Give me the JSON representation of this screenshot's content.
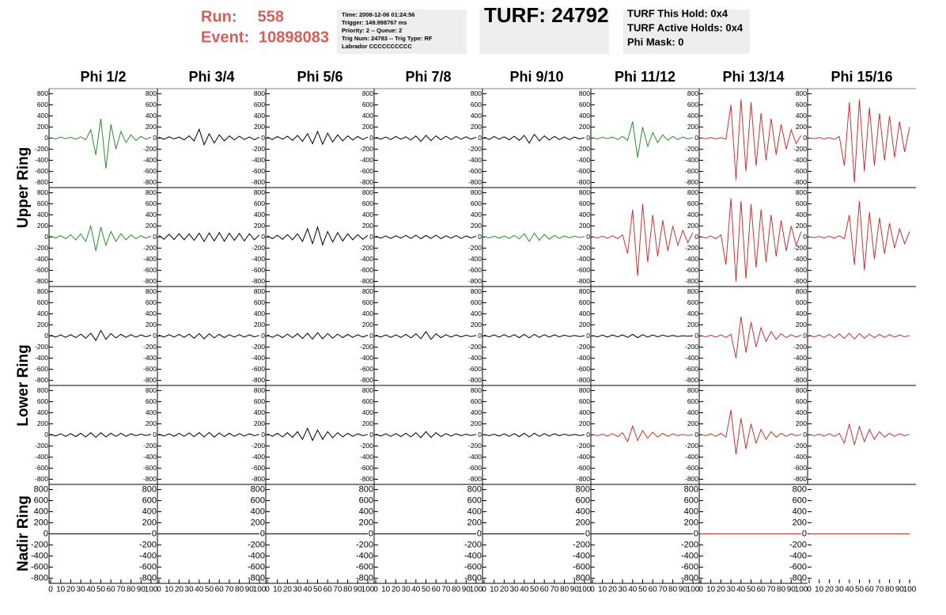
{
  "header": {
    "run_label": "Run:",
    "run": "558",
    "event_label": "Event:",
    "event": "10898083",
    "info_lines": [
      "Time: 2008-12-06 01:24:56",
      "Trigger: 149.998767 ms",
      "Priority: 2 -- Queue: 2",
      "Trig Num: 24783 -- Trig Type: RF",
      "Labrador CCCCCCCCCC"
    ],
    "turf": "TURF: 24792",
    "turf_lines": [
      "TURF This Hold: 0x4",
      "TURF Active Holds: 0x4",
      "Phi Mask: 0"
    ]
  },
  "chart_data": {
    "type": "waveform-grid",
    "columns": [
      "Phi 1/2",
      "Phi 3/4",
      "Phi 5/6",
      "Phi 7/8",
      "Phi 9/10",
      "Phi 11/12",
      "Phi 13/14",
      "Phi 15/16"
    ],
    "ring_labels": [
      "Upper Ring",
      "Lower Ring",
      "Nadir Ring"
    ],
    "xlim": [
      0,
      100
    ],
    "xticks": [
      0,
      10,
      20,
      30,
      40,
      50,
      60,
      70,
      80,
      90,
      100
    ],
    "ylim": [
      -850,
      850
    ],
    "yticks": [
      -800,
      -600,
      -400,
      -200,
      0,
      200,
      400,
      600,
      800
    ],
    "x": [
      0,
      5,
      10,
      15,
      20,
      25,
      30,
      35,
      40,
      45,
      50,
      55,
      60,
      65,
      70,
      75,
      80,
      85,
      90,
      95,
      100
    ],
    "panels": [
      [
        {
          "color": "#2e8b2e",
          "values": [
            10,
            -15,
            20,
            -10,
            15,
            -20,
            25,
            -30,
            150,
            -300,
            350,
            -550,
            250,
            -200,
            120,
            -80,
            60,
            -40,
            30,
            -20,
            15
          ]
        },
        {
          "color": "#000000",
          "values": [
            15,
            -20,
            25,
            -15,
            20,
            -30,
            40,
            -50,
            160,
            -120,
            80,
            -90,
            60,
            -50,
            40,
            -30,
            35,
            -25,
            20,
            -30,
            15
          ]
        },
        {
          "color": "#000000",
          "values": [
            20,
            -25,
            30,
            -20,
            35,
            -40,
            50,
            -60,
            80,
            -100,
            120,
            -110,
            90,
            -70,
            60,
            -50,
            40,
            -35,
            30,
            -25,
            20
          ]
        },
        {
          "color": "#000000",
          "values": [
            15,
            -20,
            20,
            -25,
            30,
            -20,
            25,
            -35,
            40,
            -60,
            50,
            -45,
            40,
            -30,
            35,
            -25,
            30,
            -20,
            25,
            -20,
            15
          ]
        },
        {
          "color": "#000000",
          "values": [
            20,
            -25,
            30,
            -20,
            25,
            -30,
            35,
            -40,
            50,
            -90,
            70,
            -50,
            40,
            -35,
            30,
            -25,
            20,
            -25,
            20,
            -15,
            10
          ]
        },
        {
          "color": "#2e8b2e",
          "values": [
            10,
            -15,
            15,
            -10,
            20,
            -25,
            30,
            -40,
            300,
            -350,
            200,
            -150,
            100,
            -80,
            60,
            -40,
            30,
            -25,
            20,
            -15,
            10
          ]
        },
        {
          "color": "#c83232",
          "values": [
            5,
            -10,
            10,
            -15,
            10,
            -20,
            600,
            -750,
            700,
            -600,
            650,
            -500,
            450,
            -400,
            350,
            -300,
            250,
            -200,
            150,
            -100,
            50
          ]
        },
        {
          "color": "#c83232",
          "values": [
            5,
            -10,
            10,
            -15,
            10,
            -20,
            30,
            -500,
            650,
            -800,
            700,
            -600,
            550,
            -500,
            450,
            -400,
            400,
            -350,
            300,
            -250,
            200
          ]
        }
      ],
      [
        {
          "color": "#2e8b2e",
          "values": [
            15,
            -20,
            25,
            -30,
            40,
            -50,
            60,
            -80,
            200,
            -250,
            180,
            -150,
            100,
            -80,
            60,
            -50,
            40,
            -30,
            25,
            -20,
            15
          ]
        },
        {
          "color": "#000000",
          "values": [
            30,
            -40,
            50,
            -45,
            60,
            -50,
            55,
            -60,
            70,
            -80,
            75,
            -70,
            80,
            -75,
            70,
            -60,
            65,
            -70,
            60,
            -50,
            40
          ]
        },
        {
          "color": "#000000",
          "values": [
            25,
            -30,
            35,
            -40,
            45,
            -50,
            60,
            -80,
            150,
            -120,
            180,
            -140,
            100,
            -90,
            80,
            -70,
            60,
            -50,
            45,
            -40,
            30
          ]
        },
        {
          "color": "#000000",
          "values": [
            15,
            -20,
            20,
            -25,
            25,
            -20,
            30,
            -25,
            35,
            -30,
            30,
            -25,
            35,
            -30,
            25,
            -20,
            30,
            -25,
            20,
            -15,
            15
          ]
        },
        {
          "color": "#2e8b2e",
          "values": [
            10,
            -15,
            15,
            -20,
            20,
            -25,
            30,
            -35,
            60,
            -80,
            70,
            -60,
            50,
            -40,
            30,
            -25,
            20,
            -15,
            15,
            -10,
            10
          ]
        },
        {
          "color": "#c83232",
          "values": [
            10,
            -15,
            15,
            -20,
            20,
            -30,
            40,
            -300,
            500,
            -700,
            600,
            -450,
            400,
            -350,
            300,
            -250,
            200,
            -150,
            120,
            -100,
            80
          ]
        },
        {
          "color": "#c83232",
          "values": [
            10,
            -20,
            20,
            -30,
            40,
            -500,
            700,
            -800,
            650,
            -750,
            600,
            -550,
            500,
            -450,
            400,
            -350,
            300,
            -250,
            200,
            -150,
            100
          ]
        },
        {
          "color": "#c83232",
          "values": [
            5,
            -10,
            10,
            -15,
            15,
            -20,
            25,
            -30,
            400,
            -500,
            650,
            -600,
            450,
            -400,
            350,
            -300,
            250,
            -200,
            150,
            -120,
            100
          ]
        }
      ],
      [
        {
          "color": "#000000",
          "values": [
            15,
            -20,
            20,
            -25,
            25,
            -30,
            35,
            -40,
            50,
            -80,
            100,
            -60,
            45,
            -35,
            30,
            -25,
            25,
            -20,
            20,
            -15,
            15
          ]
        },
        {
          "color": "#000000",
          "values": [
            15,
            -20,
            25,
            -20,
            30,
            -25,
            35,
            -40,
            45,
            -50,
            40,
            -35,
            30,
            -30,
            25,
            -20,
            25,
            -20,
            20,
            -15,
            10
          ]
        },
        {
          "color": "#000000",
          "values": [
            20,
            -25,
            25,
            -30,
            35,
            -30,
            40,
            -45,
            50,
            -55,
            60,
            -50,
            45,
            -40,
            35,
            -30,
            30,
            -25,
            25,
            -20,
            15
          ]
        },
        {
          "color": "#000000",
          "values": [
            15,
            -20,
            20,
            -25,
            20,
            -25,
            30,
            -35,
            40,
            -50,
            80,
            -60,
            40,
            -30,
            25,
            -20,
            20,
            -15,
            15,
            -10,
            10
          ]
        },
        {
          "color": "#000000",
          "values": [
            15,
            -15,
            20,
            -20,
            25,
            -20,
            25,
            -30,
            30,
            -35,
            30,
            -25,
            25,
            -20,
            20,
            -15,
            15,
            -10,
            10,
            -10,
            5
          ]
        },
        {
          "color": "#000000",
          "values": [
            10,
            -15,
            15,
            -20,
            20,
            -15,
            20,
            -25,
            30,
            -30,
            25,
            -20,
            20,
            -15,
            15,
            -10,
            10,
            -10,
            5,
            -5,
            5
          ]
        },
        {
          "color": "#c83232",
          "values": [
            10,
            -15,
            15,
            -20,
            20,
            -25,
            30,
            -400,
            350,
            -300,
            250,
            -200,
            150,
            -100,
            80,
            -60,
            40,
            -30,
            25,
            -20,
            15
          ]
        },
        {
          "color": "#c83232",
          "values": [
            15,
            -20,
            20,
            -25,
            30,
            -35,
            40,
            -45,
            50,
            -55,
            45,
            -40,
            35,
            -30,
            30,
            -25,
            25,
            -20,
            20,
            -15,
            10
          ]
        }
      ],
      [
        {
          "color": "#000000",
          "values": [
            15,
            -20,
            20,
            -25,
            25,
            -30,
            30,
            -35,
            40,
            -45,
            40,
            -35,
            30,
            -25,
            30,
            -25,
            20,
            -15,
            15,
            -10,
            10
          ]
        },
        {
          "color": "#000000",
          "values": [
            15,
            -20,
            20,
            -25,
            30,
            -25,
            35,
            -30,
            40,
            -35,
            45,
            -40,
            35,
            -30,
            30,
            -25,
            25,
            -20,
            20,
            -15,
            10
          ]
        },
        {
          "color": "#000000",
          "values": [
            20,
            -25,
            30,
            -35,
            40,
            -45,
            60,
            -80,
            120,
            -100,
            90,
            -80,
            60,
            -50,
            40,
            -35,
            30,
            -25,
            20,
            -15,
            10
          ]
        },
        {
          "color": "#000000",
          "values": [
            15,
            -20,
            20,
            -25,
            25,
            -30,
            30,
            -35,
            40,
            -50,
            60,
            -45,
            40,
            -30,
            25,
            -20,
            20,
            -15,
            15,
            -10,
            10
          ]
        },
        {
          "color": "#000000",
          "values": [
            10,
            -15,
            15,
            -20,
            20,
            -25,
            25,
            -30,
            30,
            -35,
            30,
            -25,
            25,
            -20,
            20,
            -15,
            15,
            -10,
            10,
            -10,
            5
          ]
        },
        {
          "color": "#c83232",
          "values": [
            10,
            -15,
            15,
            -20,
            25,
            -30,
            40,
            -120,
            160,
            -100,
            80,
            -60,
            50,
            -40,
            30,
            -25,
            20,
            -15,
            10,
            -10,
            5
          ]
        },
        {
          "color": "#c83232",
          "values": [
            10,
            -15,
            20,
            -25,
            30,
            -40,
            450,
            -350,
            300,
            -250,
            200,
            -150,
            100,
            -80,
            60,
            -40,
            30,
            -25,
            20,
            -15,
            10
          ]
        },
        {
          "color": "#c83232",
          "values": [
            10,
            -15,
            15,
            -20,
            20,
            -25,
            30,
            -150,
            200,
            -180,
            150,
            -120,
            100,
            -80,
            60,
            -40,
            30,
            -25,
            20,
            -15,
            10
          ]
        }
      ],
      [
        {
          "color": "#000000",
          "values": [
            0,
            0,
            0,
            0,
            0,
            0,
            0,
            0,
            0,
            0,
            0,
            0,
            0,
            0,
            0,
            0,
            0,
            0,
            0,
            0,
            0
          ]
        },
        {
          "color": "#000000",
          "values": [
            0,
            0,
            0,
            0,
            0,
            0,
            0,
            0,
            0,
            0,
            0,
            0,
            0,
            0,
            0,
            0,
            0,
            0,
            0,
            0,
            0
          ]
        },
        {
          "color": "#000000",
          "values": [
            0,
            0,
            0,
            0,
            0,
            0,
            0,
            0,
            0,
            0,
            0,
            0,
            0,
            0,
            0,
            0,
            0,
            0,
            0,
            0,
            0
          ]
        },
        {
          "color": "#000000",
          "values": [
            0,
            0,
            0,
            0,
            0,
            0,
            0,
            0,
            0,
            0,
            0,
            0,
            0,
            0,
            0,
            0,
            0,
            0,
            0,
            0,
            0
          ]
        },
        {
          "color": "#000000",
          "values": [
            0,
            0,
            0,
            0,
            0,
            0,
            0,
            0,
            0,
            0,
            0,
            0,
            0,
            0,
            0,
            0,
            0,
            0,
            0,
            0,
            0
          ]
        },
        {
          "color": "#000000",
          "values": [
            0,
            0,
            0,
            0,
            0,
            0,
            0,
            0,
            0,
            0,
            0,
            0,
            0,
            0,
            0,
            0,
            0,
            0,
            0,
            0,
            0
          ]
        },
        {
          "color": "#c83232",
          "values": [
            0,
            0,
            0,
            0,
            0,
            0,
            0,
            0,
            0,
            0,
            0,
            0,
            0,
            0,
            0,
            0,
            0,
            0,
            0,
            0,
            0
          ]
        },
        {
          "color": "#c83232",
          "values": [
            0,
            0,
            0,
            0,
            0,
            0,
            0,
            0,
            0,
            0,
            0,
            0,
            0,
            0,
            0,
            0,
            0,
            0,
            0,
            0,
            0
          ]
        }
      ]
    ]
  }
}
